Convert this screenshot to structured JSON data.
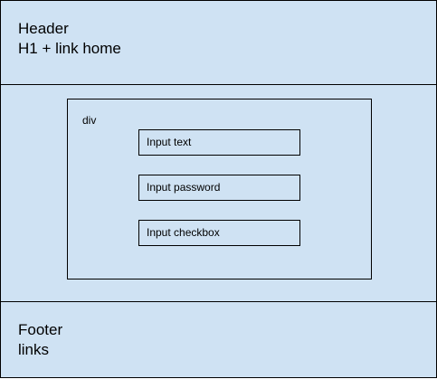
{
  "header": {
    "line1": "Header",
    "line2": "H1 + link home"
  },
  "main": {
    "div_label": "div",
    "inputs": [
      {
        "label": "Input text"
      },
      {
        "label": "Input password"
      },
      {
        "label": "Input checkbox"
      }
    ]
  },
  "footer": {
    "line1": "Footer",
    "line2": "links"
  },
  "colors": {
    "fill": "#cfe2f3",
    "stroke": "#000000"
  }
}
